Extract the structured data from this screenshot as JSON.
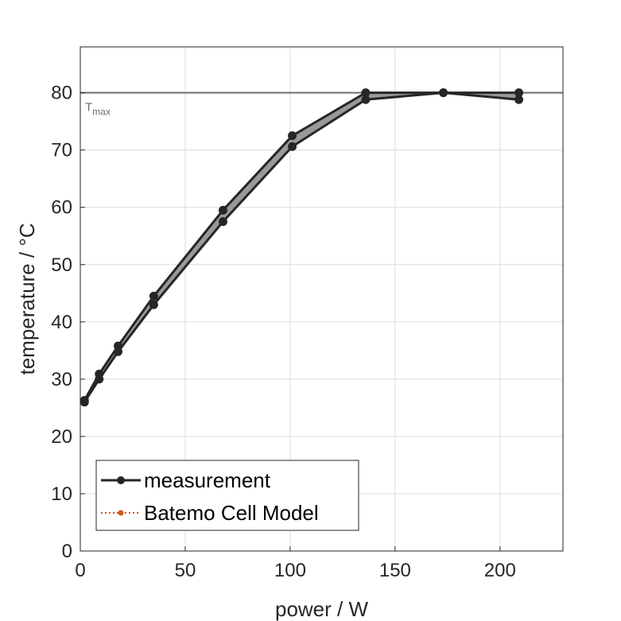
{
  "chart_data": {
    "type": "line",
    "xlabel": "power / W",
    "ylabel": "temperature / °C",
    "xlim": [
      0,
      230
    ],
    "ylim": [
      0,
      88
    ],
    "xticks": [
      0,
      50,
      100,
      150,
      200
    ],
    "yticks": [
      0,
      10,
      20,
      30,
      40,
      50,
      60,
      70,
      80
    ],
    "grid": true,
    "legend_location": "bottom-left",
    "reference_line": {
      "y": 80,
      "label": "T",
      "label_subscript": "max",
      "color": "#6e6e6e"
    },
    "band_color": "#999999",
    "series": [
      {
        "name": "measurement",
        "color": "#262626",
        "style": "solid",
        "marker": "circle",
        "upper": {
          "x": [
            2,
            9,
            18,
            35,
            68,
            101,
            136,
            173,
            209
          ],
          "y": [
            26.3,
            30.9,
            35.8,
            44.5,
            59.5,
            72.5,
            80.0,
            80.0,
            80.0
          ]
        },
        "lower": {
          "x": [
            2,
            9,
            18,
            35,
            68,
            101,
            136,
            173,
            209
          ],
          "y": [
            26.0,
            30.0,
            34.8,
            43.0,
            57.5,
            70.6,
            78.8,
            80.0,
            78.8
          ]
        }
      },
      {
        "name": "Batemo Cell Model",
        "color": "#d95319",
        "style": "dotted",
        "marker": "circle",
        "upper": {
          "x": [],
          "y": []
        },
        "lower": {
          "x": [],
          "y": []
        }
      }
    ]
  }
}
